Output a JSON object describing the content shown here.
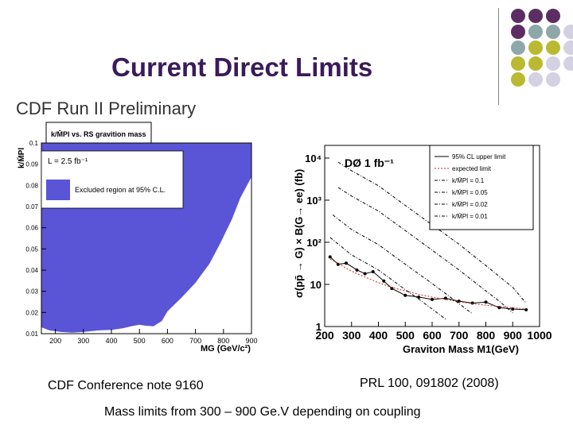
{
  "slide": {
    "title": "Current Direct Limits",
    "caption_left": "CDF Conference note 9160",
    "caption_right": "PRL 100, 091802 (2008)",
    "caption_bottom": "Mass limits from 300 – 900 Ge.V depending on coupling"
  },
  "decor": {
    "dot_colors": {
      "purple": "#5c2d63",
      "teal": "#8ea8aa",
      "yellow": "#b9ba31",
      "lavender": "#d3d1e2"
    },
    "dot_grid": [
      [
        "purple",
        "purple",
        "purple"
      ],
      [
        "purple",
        "teal",
        "teal",
        "lavender"
      ],
      [
        "teal",
        "yellow",
        "yellow",
        "lavender"
      ],
      [
        "yellow",
        "yellow",
        "lavender",
        "lavender"
      ],
      [
        "yellow",
        "lavender",
        "lavender"
      ]
    ]
  },
  "chart_data": [
    {
      "type": "area",
      "header": "CDF Run II Preliminary",
      "title": "k/M̄Pl vs. RS gravition mass",
      "ylabel": "k/M̄Pl",
      "xlabel": "MG (GeV/c²)",
      "luminosity": "L = 2.5 fb⁻¹",
      "legend": "Excluded region at 95% C.L.",
      "legend_placement": "top-left",
      "xlim": [
        150,
        900
      ],
      "ylim": [
        0.01,
        0.1
      ],
      "x_ticks": [
        "200",
        "300",
        "400",
        "500",
        "600",
        "700",
        "800",
        "900"
      ],
      "y_ticks": [
        "0.01",
        "0.02",
        "0.03",
        "0.04",
        "0.05",
        "0.06",
        "0.07",
        "0.08",
        "0.09",
        "0.1"
      ],
      "fill_color": "#5a55d6",
      "boundary": {
        "x": [
          150,
          180,
          220,
          260,
          300,
          350,
          400,
          440,
          470,
          500,
          520,
          550,
          580,
          600,
          650,
          700,
          750,
          790,
          830,
          860,
          900
        ],
        "y": [
          0.013,
          0.0115,
          0.0108,
          0.0105,
          0.0108,
          0.0115,
          0.0118,
          0.0125,
          0.0135,
          0.0142,
          0.0138,
          0.0135,
          0.016,
          0.0205,
          0.027,
          0.034,
          0.043,
          0.053,
          0.064,
          0.074,
          0.084
        ]
      }
    },
    {
      "type": "line",
      "header": "DØ  1 fb⁻¹",
      "ylabel": "σ(pp̄ → G) × B(G→ ee) (fb)",
      "xlabel": "Graviton Mass M1(GeV)",
      "log_y": true,
      "xlim": [
        200,
        1000
      ],
      "ylim": [
        1,
        20000
      ],
      "x_ticks": [
        "200",
        "300",
        "400",
        "500",
        "600",
        "700",
        "800",
        "900",
        "1000"
      ],
      "y_ticks": [
        "1",
        "10",
        "10²",
        "10³",
        "10⁴"
      ],
      "legend_placement": "top-right",
      "series": [
        {
          "name": "95% CL upper limit",
          "style": "solid-markers",
          "color": "#000000",
          "x": [
            220,
            250,
            280,
            320,
            350,
            380,
            420,
            450,
            500,
            550,
            600,
            650,
            700,
            750,
            800,
            850,
            900,
            950
          ],
          "y": [
            45,
            30,
            32,
            22,
            18,
            20,
            12,
            8,
            5.5,
            5,
            4.4,
            4.7,
            4,
            3.6,
            3.8,
            2.8,
            2.6,
            2.5
          ]
        },
        {
          "name": "expected limit",
          "style": "dotted",
          "color": "#d42222",
          "x": [
            220,
            250,
            280,
            320,
            350,
            400,
            450,
            500,
            550,
            600,
            650,
            700,
            750,
            800,
            850,
            900,
            950
          ],
          "y": [
            40,
            32,
            24,
            18,
            15,
            11,
            8.5,
            7,
            5.8,
            5,
            4.4,
            3.9,
            3.5,
            3.2,
            3,
            2.8,
            2.6
          ]
        },
        {
          "name": "k/M̄Pl = 0.1",
          "style": "dashdot",
          "color": "#000000",
          "x": [
            250,
            300,
            400,
            500,
            600,
            700,
            800,
            900,
            950
          ],
          "y": [
            8000,
            5000,
            2200,
            750,
            260,
            90,
            28,
            8.5,
            3.6
          ]
        },
        {
          "name": "k/M̄Pl = 0.05",
          "style": "dashdot",
          "color": "#000000",
          "x": [
            250,
            300,
            400,
            500,
            600,
            700,
            800,
            850,
            900
          ],
          "y": [
            2000,
            1250,
            550,
            190,
            65,
            22,
            7,
            4,
            2.1
          ]
        },
        {
          "name": "k/M̄Pl = 0.02",
          "style": "dashdot",
          "color": "#000000",
          "x": [
            230,
            300,
            400,
            500,
            600,
            700,
            750
          ],
          "y": [
            450,
            200,
            88,
            30,
            10.5,
            3.5,
            2
          ]
        },
        {
          "name": "k/M̄Pl = 0.01",
          "style": "dashdot",
          "color": "#000000",
          "x": [
            220,
            300,
            400,
            500,
            550,
            600,
            650
          ],
          "y": [
            130,
            50,
            22,
            7.5,
            4.5,
            2.6,
            1.5
          ]
        }
      ]
    }
  ]
}
